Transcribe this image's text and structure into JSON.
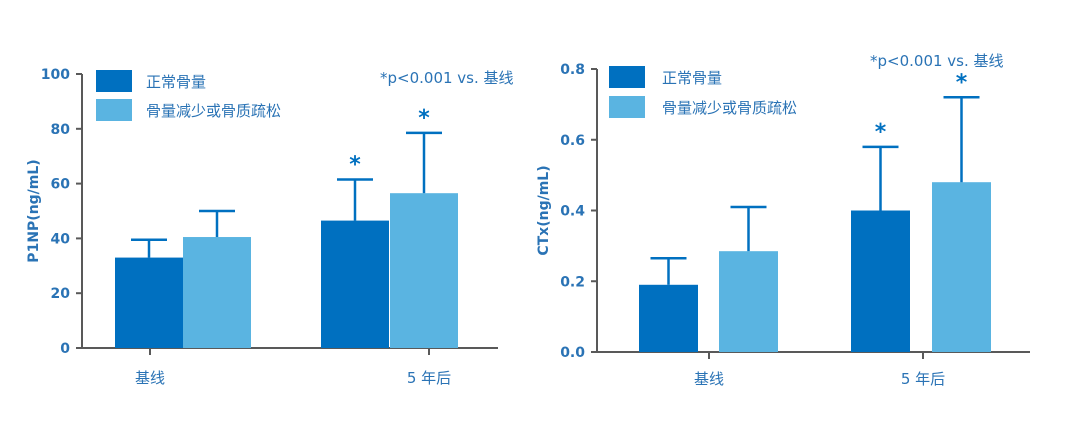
{
  "colors": {
    "normal": "#0070c0",
    "low": "#5ab4e1",
    "axis": "#595959",
    "text": "#2a73b5"
  },
  "chart_data": [
    {
      "type": "bar",
      "categories": [
        "基线",
        "5 年后"
      ],
      "series": [
        {
          "name": "正常骨量",
          "values": [
            33,
            46.5
          ],
          "error": [
            6.5,
            15
          ],
          "significant": [
            false,
            true
          ]
        },
        {
          "name": "骨量减少或骨质疏松",
          "values": [
            40.5,
            56.5
          ],
          "error": [
            9.5,
            22
          ],
          "significant": [
            false,
            true
          ]
        }
      ],
      "ylabel": "P1NP(ng/mL)",
      "ylim": [
        0,
        100
      ],
      "yticks": [
        "0",
        "20",
        "40",
        "60",
        "80",
        "100"
      ],
      "note": "*p<0.001 vs. 基线",
      "star": "*",
      "legend": "top-left"
    },
    {
      "type": "bar",
      "categories": [
        "基线",
        "5 年后"
      ],
      "series": [
        {
          "name": "正常骨量",
          "values": [
            0.19,
            0.4
          ],
          "error": [
            0.075,
            0.18
          ],
          "significant": [
            false,
            true
          ]
        },
        {
          "name": "骨量减少或骨质疏松",
          "values": [
            0.285,
            0.48
          ],
          "error": [
            0.125,
            0.24
          ],
          "significant": [
            false,
            true
          ]
        }
      ],
      "ylabel": "CTx(ng/mL)",
      "ylim": [
        0,
        0.8
      ],
      "yticks": [
        "0.0",
        "0.2",
        "0.4",
        "0.6",
        "0.8"
      ],
      "note": "*p<0.001 vs. 基线",
      "star": "*",
      "legend": "top-left"
    }
  ]
}
